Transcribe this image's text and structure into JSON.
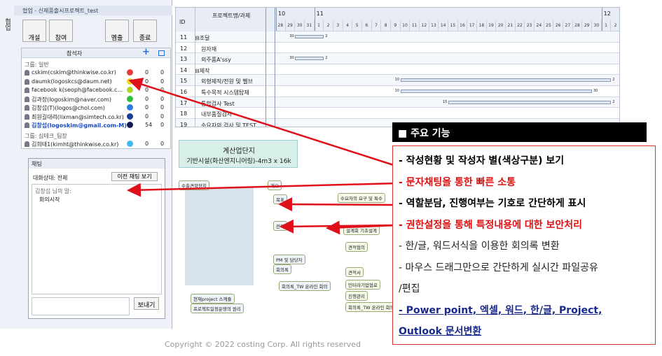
{
  "window": {
    "title": "협업 - 신제품출시프로젝트_test",
    "side_label": "협업",
    "toolbar": [
      "개설",
      "참여",
      "멤출",
      "종료"
    ]
  },
  "participants": {
    "header": "참석자",
    "groups": [
      {
        "name": "그룹: 일반",
        "members": [
          {
            "name": "cskim(cskim@thinkwise.co.kr)",
            "color": "#e83c3c",
            "count_a": "0",
            "count_b": "0"
          },
          {
            "name": "daumk(logoskcs@daum.net)",
            "color": "#f0d820",
            "count_a": "0",
            "count_b": "0"
          },
          {
            "name": "facebook k(seoph@facebook.c...",
            "color": "#a8d820",
            "count_a": "0",
            "count_b": "0"
          },
          {
            "name": "김과장(logoskim@naver.com)",
            "color": "#30c040",
            "count_a": "0",
            "count_b": "0"
          },
          {
            "name": "김창섭(T)(logos@chol.com)",
            "color": "#2a7ae0",
            "count_a": "0",
            "count_b": "0"
          },
          {
            "name": "최원길대리(lixman@simtech.co.kr)",
            "color": "#1a3a9a",
            "count_a": "0",
            "count_b": "0"
          },
          {
            "name": "김창섭(logoskim@gmail.com-M)",
            "color": "#101a50",
            "count_a": "54",
            "count_b": "0",
            "highlight": true
          }
        ]
      },
      {
        "name": "그룹: 심테크_팀장",
        "members": [
          {
            "name": "김희태1(kimht@thinkwise.co.kr)",
            "color": "#40b8f0",
            "count_a": "0",
            "count_b": "0"
          }
        ]
      }
    ]
  },
  "chat": {
    "title": "채팅",
    "partner": "대화상대: 전체",
    "history_button": "이전 채팅 보기",
    "messages": [
      "김창섭 님의 말:",
      "회의시작"
    ],
    "send_button": "보내기"
  },
  "gantt": {
    "header_name": "프로젝트명/과제",
    "header_id": "ID",
    "months": [
      "10",
      "11",
      "12"
    ],
    "days": [
      "28",
      "29",
      "30",
      "31",
      "1",
      "2",
      "3",
      "4",
      "5",
      "6",
      "7",
      "8",
      "9",
      "10",
      "11",
      "12",
      "13",
      "14",
      "15",
      "16",
      "17",
      "18",
      "19",
      "20",
      "21",
      "22",
      "23",
      "24",
      "25",
      "26",
      "27",
      "28",
      "29",
      "30",
      "1",
      "2"
    ],
    "rows": [
      {
        "id": "11",
        "name": "⊟조달",
        "bar": [
          "30",
          "2"
        ]
      },
      {
        "id": "12",
        "name": "원자재"
      },
      {
        "id": "13",
        "name": "외주품A'ssy",
        "bar": [
          "30",
          "2"
        ]
      },
      {
        "id": "14",
        "name": "⊟제작"
      },
      {
        "id": "15",
        "name": "외형제작/전원 및 벨브",
        "bar": [
          "10",
          "2"
        ]
      },
      {
        "id": "16",
        "name": "특수목적 시스템탑재",
        "bar": [
          "10",
          "30"
        ]
      },
      {
        "id": "17",
        "name": "통합검사 Test",
        "bar": [
          "15",
          "2"
        ]
      },
      {
        "id": "18",
        "name": "내부품질검사"
      },
      {
        "id": "19",
        "name": "수요자의 검사 및 TEST"
      }
    ]
  },
  "mindmap": {
    "title": "계산업단지",
    "subtitle": "기반시설(화산엔지니어링)-4m3 x 16k",
    "nodes": [
      "수출견학장치",
      "개요",
      "목표",
      "전략",
      "PM 및 담당자",
      "회의록",
      "회의록_TW 온라인 회의",
      "현재project 스케쥴",
      "프로젝트일정운영의 원리",
      "수요자의 요구 및 특수",
      "설계회 기초설계",
      "견적협의",
      "견적서",
      "인터라기업협료",
      "진행관리",
      "회의록_TW 온라인 회의"
    ]
  },
  "features": {
    "title": "■ 주요 기능",
    "items": [
      {
        "text": "- 작성현황 및 작성자 별(색상구분) 보기",
        "style": "bold"
      },
      {
        "text": "- 문자채팅을 통한 빠른 소통",
        "style": "red"
      },
      {
        "text": "- 역할분담, 진행여부는 기호로 간단하게 표시",
        "style": "bold"
      },
      {
        "text": "- 권한설정을 통해 특정내용에 대한 보안처리",
        "style": "red"
      },
      {
        "text": "- 한/글, 워드서식을 이용한 회의록 변환",
        "style": "plain"
      },
      {
        "text": "- 마우스 드래그만으로 간단하게  실시간 파일공유",
        "style": "plain"
      },
      {
        "text": "/편집",
        "style": "plain"
      },
      {
        "text": "- Power point, 엑셀, 워드, 한/글, Project,",
        "style": "link"
      },
      {
        "text": "Outlook  문서변환",
        "style": "link"
      }
    ]
  },
  "footer": "Copyright © 2022 costing Corp. All rights reserved"
}
